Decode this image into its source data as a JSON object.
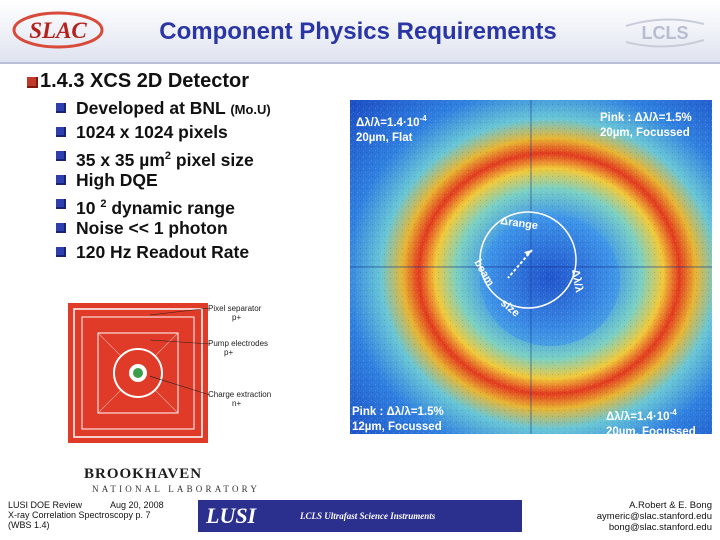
{
  "header": {
    "title": "Component Physics Requirements",
    "logo_left_text": "SLAC",
    "logo_right_text": "LCLS"
  },
  "section": {
    "heading": "1.4.3 XCS 2D Detector"
  },
  "items": [
    {
      "text": "Developed at BNL",
      "suffix": "(Mo.U)"
    },
    {
      "text": "1024 x 1024 pixels"
    },
    {
      "text": "35 x 35 µm",
      "sup": "2",
      "tail": " pixel size"
    },
    {
      "text": "High DQE"
    },
    {
      "text": "10 ",
      "sup": "2",
      "tail": " dynamic range"
    },
    {
      "text": "Noise << 1 photon"
    },
    {
      "text": "120 Hz Readout Rate"
    }
  ],
  "image": {
    "label_tl_1": "Δλ/λ=1.4·10",
    "label_tl_1_sup": "-4",
    "label_tl_2": "20µm, Flat",
    "label_tr_1": "Pink : Δλ/λ=1.5%",
    "label_tr_2": "20µm, Focussed",
    "label_bl_1": "Pink : Δλ/λ=1.5%",
    "label_bl_2": "12µm, Focussed",
    "label_br_1": "Δλ/λ=1.4·10",
    "label_br_1_sup": "-4",
    "label_br_2": "20µm, Focussed",
    "arc_top": "Δrange",
    "arc_right": "Δλ/λ",
    "arc_left": "beam",
    "arc_bottom": "size"
  },
  "diagram": {
    "label_1": "Pixel separator",
    "label_1b": "p+",
    "label_2": "Pump electrodes",
    "label_2b": "p+",
    "label_3": "Charge extraction",
    "label_3b": "n+"
  },
  "bnl": {
    "name": "BROOKHAVEN",
    "sub": "NATIONAL LABORATORY"
  },
  "footer": {
    "left_1a": "LUSI DOE Review",
    "left_1b": "Aug 20, 2008",
    "left_2": "X-ray Correlation Spectroscopy  p. 7",
    "left_3": "(WBS 1.4)",
    "banner_logo": "LUSI",
    "banner_text": "LCLS Ultrafast Science Instruments",
    "right_1": "A.Robert & E. Bong",
    "right_2": "aymeric@slac.stanford.edu",
    "right_3": "bong@slac.stanford.edu"
  }
}
